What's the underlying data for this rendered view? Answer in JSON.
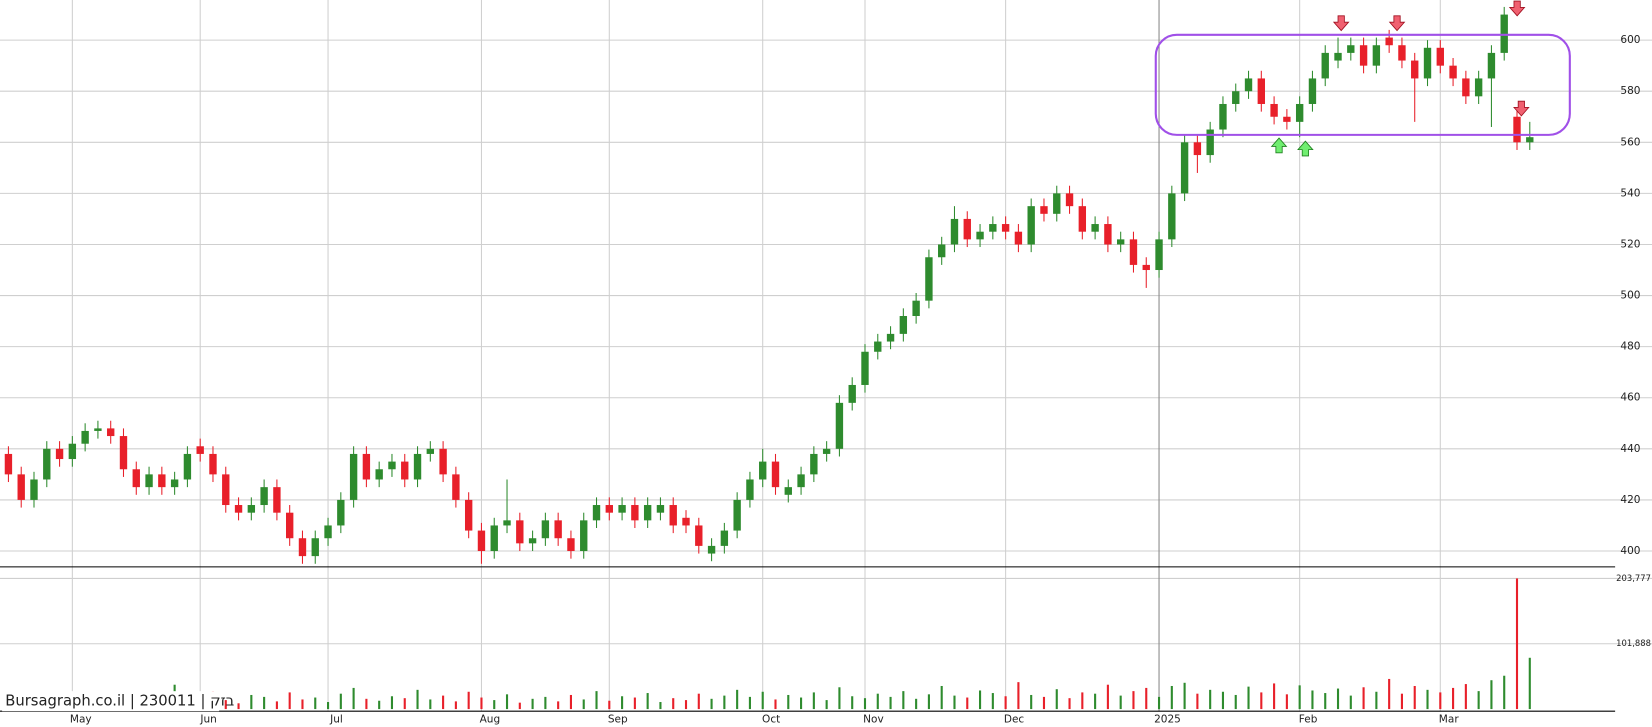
{
  "chart_data": {
    "type": "candlestick",
    "label": "Bursagraph.co.il | 230011 | בזק",
    "up_color": "#2e8b2e",
    "down_color": "#e8202a",
    "grid": true,
    "categories": [
      null,
      null,
      null,
      null,
      null,
      "May",
      null,
      null,
      null,
      null,
      null,
      null,
      null,
      null,
      null,
      "Jun",
      null,
      null,
      null,
      null,
      null,
      null,
      null,
      null,
      null,
      "Jul",
      null,
      null,
      null,
      null,
      null,
      null,
      null,
      null,
      null,
      null,
      null,
      "Aug",
      null,
      null,
      null,
      null,
      null,
      null,
      null,
      null,
      null,
      "Sep",
      null,
      null,
      null,
      null,
      null,
      null,
      null,
      null,
      null,
      null,
      null,
      "Oct",
      null,
      null,
      null,
      null,
      null,
      null,
      null,
      "Nov",
      null,
      null,
      null,
      null,
      null,
      null,
      null,
      null,
      null,
      null,
      "Dec",
      null,
      null,
      null,
      null,
      null,
      null,
      null,
      null,
      null,
      null,
      null,
      "2025",
      null,
      null,
      null,
      null,
      null,
      null,
      null,
      null,
      null,
      null,
      "Feb",
      null,
      null,
      null,
      null,
      null,
      null,
      null,
      null,
      null,
      null,
      "Mar",
      null,
      null,
      null,
      null,
      null,
      null,
      null
    ],
    "candles": [
      [
        438,
        441,
        427,
        430
      ],
      [
        430,
        433,
        417,
        420
      ],
      [
        420,
        431,
        417,
        428
      ],
      [
        428,
        443,
        425,
        440
      ],
      [
        440,
        443,
        433,
        436
      ],
      [
        436,
        445,
        433,
        442
      ],
      [
        442,
        450,
        439,
        447
      ],
      [
        447,
        451,
        444,
        448
      ],
      [
        448,
        451,
        442,
        445
      ],
      [
        445,
        448,
        429,
        432
      ],
      [
        432,
        435,
        422,
        425
      ],
      [
        425,
        433,
        422,
        430
      ],
      [
        430,
        433,
        422,
        425
      ],
      [
        425,
        431,
        422,
        428
      ],
      [
        428,
        441,
        425,
        438
      ],
      [
        441,
        444,
        435,
        438
      ],
      [
        438,
        441,
        427,
        430
      ],
      [
        430,
        433,
        415,
        418
      ],
      [
        418,
        421,
        412,
        415
      ],
      [
        415,
        421,
        412,
        418
      ],
      [
        418,
        428,
        415,
        425
      ],
      [
        425,
        428,
        412,
        415
      ],
      [
        415,
        418,
        402,
        405
      ],
      [
        405,
        408,
        395,
        398
      ],
      [
        398,
        408,
        395,
        405
      ],
      [
        405,
        413,
        402,
        410
      ],
      [
        410,
        423,
        407,
        420
      ],
      [
        420,
        441,
        417,
        438
      ],
      [
        438,
        441,
        425,
        428
      ],
      [
        428,
        435,
        425,
        432
      ],
      [
        432,
        438,
        429,
        435
      ],
      [
        435,
        438,
        425,
        428
      ],
      [
        428,
        441,
        425,
        438
      ],
      [
        438,
        443,
        435,
        440
      ],
      [
        440,
        443,
        427,
        430
      ],
      [
        430,
        433,
        417,
        420
      ],
      [
        420,
        423,
        405,
        408
      ],
      [
        408,
        411,
        395,
        400
      ],
      [
        400,
        413,
        397,
        410
      ],
      [
        410,
        428,
        407,
        412
      ],
      [
        412,
        415,
        400,
        403
      ],
      [
        403,
        408,
        400,
        405
      ],
      [
        405,
        415,
        402,
        412
      ],
      [
        412,
        415,
        402,
        405
      ],
      [
        405,
        408,
        397,
        400
      ],
      [
        400,
        415,
        397,
        412
      ],
      [
        412,
        421,
        409,
        418
      ],
      [
        418,
        421,
        412,
        415
      ],
      [
        415,
        421,
        412,
        418
      ],
      [
        418,
        421,
        409,
        412
      ],
      [
        412,
        421,
        409,
        418
      ],
      [
        415,
        421,
        412,
        418
      ],
      [
        418,
        421,
        407,
        410
      ],
      [
        413,
        416,
        407,
        410
      ],
      [
        410,
        413,
        399,
        402
      ],
      [
        399,
        405,
        396,
        402
      ],
      [
        402,
        411,
        399,
        408
      ],
      [
        408,
        423,
        405,
        420
      ],
      [
        420,
        431,
        417,
        428
      ],
      [
        428,
        440,
        425,
        435
      ],
      [
        435,
        438,
        422,
        425
      ],
      [
        422,
        428,
        419,
        425
      ],
      [
        425,
        433,
        422,
        430
      ],
      [
        430,
        441,
        427,
        438
      ],
      [
        438,
        443,
        435,
        440
      ],
      [
        440,
        461,
        437,
        458
      ],
      [
        458,
        468,
        455,
        465
      ],
      [
        465,
        481,
        462,
        478
      ],
      [
        478,
        485,
        475,
        482
      ],
      [
        482,
        488,
        479,
        485
      ],
      [
        485,
        495,
        482,
        492
      ],
      [
        492,
        501,
        489,
        498
      ],
      [
        498,
        518,
        495,
        515
      ],
      [
        515,
        523,
        512,
        520
      ],
      [
        520,
        535,
        517,
        530
      ],
      [
        530,
        533,
        519,
        522
      ],
      [
        522,
        528,
        519,
        525
      ],
      [
        525,
        531,
        522,
        528
      ],
      [
        528,
        531,
        522,
        525
      ],
      [
        525,
        528,
        517,
        520
      ],
      [
        520,
        538,
        517,
        535
      ],
      [
        535,
        538,
        529,
        532
      ],
      [
        532,
        543,
        529,
        540
      ],
      [
        540,
        543,
        532,
        535
      ],
      [
        535,
        538,
        522,
        525
      ],
      [
        525,
        531,
        522,
        528
      ],
      [
        528,
        531,
        517,
        520
      ],
      [
        520,
        525,
        517,
        522
      ],
      [
        522,
        525,
        509,
        512
      ],
      [
        512,
        515,
        503,
        510
      ],
      [
        510,
        525,
        507,
        522
      ],
      [
        522,
        543,
        519,
        540
      ],
      [
        540,
        563,
        537,
        560
      ],
      [
        560,
        563,
        548,
        555
      ],
      [
        555,
        568,
        552,
        565
      ],
      [
        565,
        578,
        562,
        575
      ],
      [
        575,
        583,
        572,
        580
      ],
      [
        580,
        588,
        577,
        585
      ],
      [
        585,
        588,
        572,
        575
      ],
      [
        575,
        578,
        567,
        570
      ],
      [
        570,
        573,
        565,
        568
      ],
      [
        568,
        578,
        562,
        575
      ],
      [
        575,
        588,
        572,
        585
      ],
      [
        585,
        598,
        582,
        595
      ],
      [
        592,
        601,
        589,
        595
      ],
      [
        595,
        601,
        592,
        598
      ],
      [
        598,
        601,
        587,
        590
      ],
      [
        590,
        601,
        587,
        598
      ],
      [
        601,
        604,
        595,
        598
      ],
      [
        598,
        601,
        589,
        592
      ],
      [
        592,
        595,
        568,
        585
      ],
      [
        585,
        600,
        582,
        597
      ],
      [
        597,
        600,
        587,
        590
      ],
      [
        590,
        593,
        582,
        585
      ],
      [
        585,
        588,
        575,
        578
      ],
      [
        578,
        588,
        575,
        585
      ],
      [
        585,
        598,
        566,
        595
      ],
      [
        595,
        613,
        592,
        610
      ],
      [
        570,
        573,
        557,
        560
      ],
      [
        560,
        568,
        557,
        562
      ]
    ],
    "ylim": [
      393.8,
      615.7
    ],
    "yticks": [
      400,
      420,
      440,
      460,
      480,
      500,
      520,
      540,
      560,
      580,
      600
    ],
    "volume": [
      15000,
      22000,
      12000,
      18000,
      9000,
      14000,
      11000,
      20000,
      8000,
      16000,
      25000,
      13000,
      10000,
      38000,
      12000,
      17000,
      28000,
      14000,
      9000,
      22000,
      19000,
      12000,
      26000,
      15000,
      18000,
      11000,
      24000,
      33000,
      16000,
      13000,
      20000,
      17000,
      30000,
      15000,
      21000,
      12000,
      27000,
      18000,
      14000,
      23000,
      10000,
      16000,
      19000,
      12000,
      22000,
      15000,
      28000,
      13000,
      20000,
      18000,
      25000,
      11000,
      17000,
      14000,
      24000,
      16000,
      21000,
      30000,
      19000,
      27000,
      15000,
      22000,
      18000,
      26000,
      14000,
      34000,
      20000,
      17000,
      24000,
      19000,
      28000,
      16000,
      23000,
      36000,
      21000,
      18000,
      29000,
      25000,
      20000,
      42000,
      22000,
      19000,
      31000,
      17000,
      26000,
      24000,
      38000,
      21000,
      28000,
      33000,
      19000,
      36000,
      41000,
      24000,
      30000,
      27000,
      22000,
      35000,
      26000,
      40000,
      23000,
      37000,
      29000,
      25000,
      32000,
      21000,
      34000,
      27000,
      47000,
      24000,
      36000,
      30000,
      26000,
      33000,
      39000,
      28000,
      45000,
      52000,
      203777,
      80000
    ],
    "vlim": [
      0,
      221850
    ],
    "vticks": [
      {
        "value": 101888,
        "label": "101,888"
      },
      {
        "value": 203777,
        "label": "203,777"
      }
    ]
  }
}
